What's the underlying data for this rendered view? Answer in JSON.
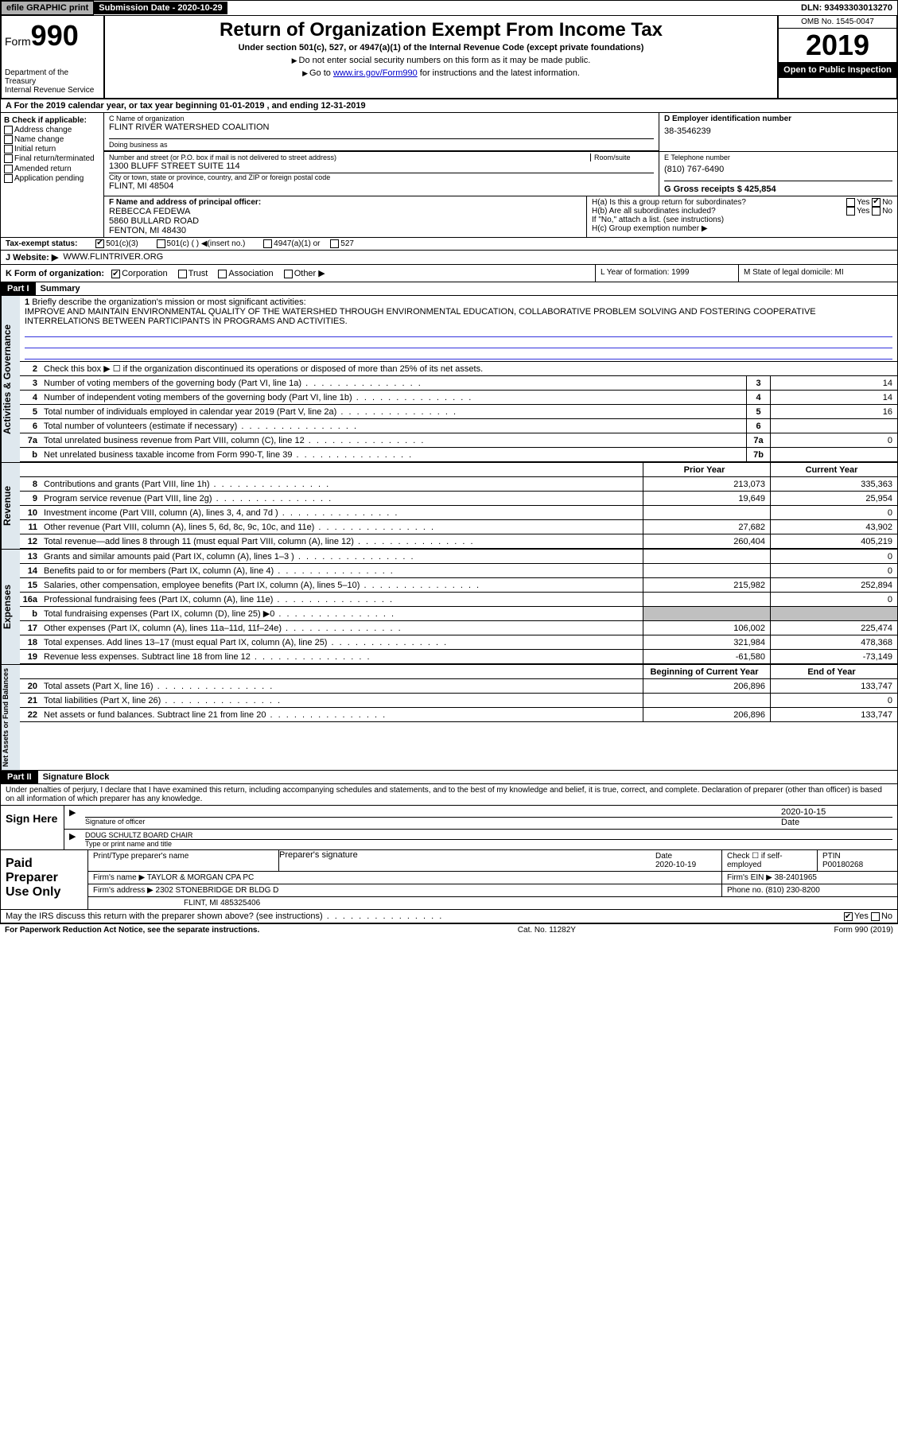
{
  "topbar": {
    "efile": "efile GRAPHIC print",
    "submission_label": "Submission Date - 2020-10-29",
    "dln": "DLN: 93493303013270"
  },
  "header": {
    "form_label": "Form",
    "form_number": "990",
    "dept": "Department of the Treasury",
    "irs": "Internal Revenue Service",
    "title": "Return of Organization Exempt From Income Tax",
    "subtitle": "Under section 501(c), 527, or 4947(a)(1) of the Internal Revenue Code (except private foundations)",
    "note1": "Do not enter social security numbers on this form as it may be made public.",
    "note2_pre": "Go to ",
    "note2_link": "www.irs.gov/Form990",
    "note2_post": " for instructions and the latest information.",
    "omb": "OMB No. 1545-0047",
    "year": "2019",
    "open_public": "Open to Public Inspection"
  },
  "row_a": "A For the 2019 calendar year, or tax year beginning 01-01-2019   , and ending 12-31-2019",
  "section_b": {
    "label": "B Check if applicable:",
    "opts": [
      "Address change",
      "Name change",
      "Initial return",
      "Final return/terminated",
      "Amended return",
      "Application pending"
    ]
  },
  "section_c": {
    "name_label": "C Name of organization",
    "name": "FLINT RIVER WATERSHED COALITION",
    "dba_label": "Doing business as",
    "addr_label": "Number and street (or P.O. box if mail is not delivered to street address)",
    "room_label": "Room/suite",
    "addr": "1300 BLUFF STREET SUITE 114",
    "city_label": "City or town, state or province, country, and ZIP or foreign postal code",
    "city": "FLINT, MI  48504"
  },
  "section_d": {
    "label": "D Employer identification number",
    "value": "38-3546239"
  },
  "section_e": {
    "label": "E Telephone number",
    "value": "(810) 767-6490"
  },
  "section_g": {
    "label": "G Gross receipts $ 425,854"
  },
  "section_f": {
    "label": "F  Name and address of principal officer:",
    "name": "REBECCA FEDEWA",
    "addr1": "5860 BULLARD ROAD",
    "addr2": "FENTON, MI  48430"
  },
  "section_h": {
    "a": "H(a)  Is this a group return for subordinates?",
    "a_yes": "Yes",
    "a_no": "No",
    "b": "H(b)  Are all subordinates included?",
    "b_note": "If \"No,\" attach a list. (see instructions)",
    "c": "H(c)  Group exemption number ▶"
  },
  "tax_status": {
    "label": "Tax-exempt status:",
    "o1": "501(c)(3)",
    "o2": "501(c) (  ) ◀(insert no.)",
    "o3": "4947(a)(1) or",
    "o4": "527"
  },
  "website": {
    "label": "J   Website: ▶",
    "value": "WWW.FLINTRIVER.ORG"
  },
  "section_k": {
    "label": "K Form of organization:",
    "o1": "Corporation",
    "o2": "Trust",
    "o3": "Association",
    "o4": "Other ▶"
  },
  "section_l": {
    "label": "L Year of formation: 1999"
  },
  "section_m": {
    "label": "M State of legal domicile: MI"
  },
  "part1": {
    "header": "Part I",
    "title": "Summary"
  },
  "summary": {
    "line1_label": "Briefly describe the organization's mission or most significant activities:",
    "line1_text": "IMPROVE AND MAINTAIN ENVIRONMENTAL QUALITY OF THE WATERSHED THROUGH ENVIRONMENTAL EDUCATION, COLLABORATIVE PROBLEM SOLVING AND FOSTERING COOPERATIVE INTERRELATIONS BETWEEN PARTICIPANTS IN PROGRAMS AND ACTIVITIES.",
    "line2": "Check this box ▶ ☐  if the organization discontinued its operations or disposed of more than 25% of its net assets.",
    "lines_single": [
      {
        "n": "3",
        "t": "Number of voting members of the governing body (Part VI, line 1a)",
        "box": "3",
        "v": "14"
      },
      {
        "n": "4",
        "t": "Number of independent voting members of the governing body (Part VI, line 1b)",
        "box": "4",
        "v": "14"
      },
      {
        "n": "5",
        "t": "Total number of individuals employed in calendar year 2019 (Part V, line 2a)",
        "box": "5",
        "v": "16"
      },
      {
        "n": "6",
        "t": "Total number of volunteers (estimate if necessary)",
        "box": "6",
        "v": ""
      },
      {
        "n": "7a",
        "t": "Total unrelated business revenue from Part VIII, column (C), line 12",
        "box": "7a",
        "v": "0"
      },
      {
        "n": "b",
        "t": "Net unrelated business taxable income from Form 990-T, line 39",
        "box": "7b",
        "v": ""
      }
    ],
    "col_headers": {
      "prior": "Prior Year",
      "current": "Current Year"
    },
    "revenue": [
      {
        "n": "8",
        "t": "Contributions and grants (Part VIII, line 1h)",
        "p": "213,073",
        "c": "335,363"
      },
      {
        "n": "9",
        "t": "Program service revenue (Part VIII, line 2g)",
        "p": "19,649",
        "c": "25,954"
      },
      {
        "n": "10",
        "t": "Investment income (Part VIII, column (A), lines 3, 4, and 7d )",
        "p": "",
        "c": "0"
      },
      {
        "n": "11",
        "t": "Other revenue (Part VIII, column (A), lines 5, 6d, 8c, 9c, 10c, and 11e)",
        "p": "27,682",
        "c": "43,902"
      },
      {
        "n": "12",
        "t": "Total revenue—add lines 8 through 11 (must equal Part VIII, column (A), line 12)",
        "p": "260,404",
        "c": "405,219"
      }
    ],
    "expenses": [
      {
        "n": "13",
        "t": "Grants and similar amounts paid (Part IX, column (A), lines 1–3 )",
        "p": "",
        "c": "0"
      },
      {
        "n": "14",
        "t": "Benefits paid to or for members (Part IX, column (A), line 4)",
        "p": "",
        "c": "0"
      },
      {
        "n": "15",
        "t": "Salaries, other compensation, employee benefits (Part IX, column (A), lines 5–10)",
        "p": "215,982",
        "c": "252,894"
      },
      {
        "n": "16a",
        "t": "Professional fundraising fees (Part IX, column (A), line 11e)",
        "p": "",
        "c": "0"
      },
      {
        "n": "b",
        "t": "Total fundraising expenses (Part IX, column (D), line 25) ▶0",
        "p": "shade",
        "c": "shade"
      },
      {
        "n": "17",
        "t": "Other expenses (Part IX, column (A), lines 11a–11d, 11f–24e)",
        "p": "106,002",
        "c": "225,474"
      },
      {
        "n": "18",
        "t": "Total expenses. Add lines 13–17 (must equal Part IX, column (A), line 25)",
        "p": "321,984",
        "c": "478,368"
      },
      {
        "n": "19",
        "t": "Revenue less expenses. Subtract line 18 from line 12",
        "p": "-61,580",
        "c": "-73,149"
      }
    ],
    "net_headers": {
      "begin": "Beginning of Current Year",
      "end": "End of Year"
    },
    "netassets": [
      {
        "n": "20",
        "t": "Total assets (Part X, line 16)",
        "p": "206,896",
        "c": "133,747"
      },
      {
        "n": "21",
        "t": "Total liabilities (Part X, line 26)",
        "p": "",
        "c": "0"
      },
      {
        "n": "22",
        "t": "Net assets or fund balances. Subtract line 21 from line 20",
        "p": "206,896",
        "c": "133,747"
      }
    ]
  },
  "vtabs": {
    "ag": "Activities & Governance",
    "rev": "Revenue",
    "exp": "Expenses",
    "net": "Net Assets or Fund Balances"
  },
  "part2": {
    "header": "Part II",
    "title": "Signature Block"
  },
  "sig": {
    "declaration": "Under penalties of perjury, I declare that I have examined this return, including accompanying schedules and statements, and to the best of my knowledge and belief, it is true, correct, and complete. Declaration of preparer (other than officer) is based on all information of which preparer has any knowledge.",
    "sign_here": "Sign Here",
    "sig_officer": "Signature of officer",
    "date_label": "Date",
    "date": "2020-10-15",
    "name_title": "DOUG SCHULTZ  BOARD CHAIR",
    "name_title_label": "Type or print name and title"
  },
  "prep": {
    "label": "Paid Preparer Use Only",
    "h1": "Print/Type preparer's name",
    "h2": "Preparer's signature",
    "h3": "Date",
    "date": "2020-10-19",
    "h4_label": "Check ☐ if self-employed",
    "h5_label": "PTIN",
    "ptin": "P00180268",
    "firm_name_label": "Firm's name    ▶",
    "firm_name": "TAYLOR & MORGAN CPA PC",
    "firm_ein_label": "Firm's EIN ▶",
    "firm_ein": "38-2401965",
    "firm_addr_label": "Firm's address ▶",
    "firm_addr1": "2302 STONEBRIDGE DR BLDG D",
    "firm_addr2": "FLINT, MI  485325406",
    "phone_label": "Phone no.",
    "phone": "(810) 230-8200",
    "discuss": "May the IRS discuss this return with the preparer shown above? (see instructions)",
    "yes": "Yes",
    "no": "No"
  },
  "footer": {
    "left": "For Paperwork Reduction Act Notice, see the separate instructions.",
    "mid": "Cat. No. 11282Y",
    "right": "Form 990 (2019)"
  }
}
